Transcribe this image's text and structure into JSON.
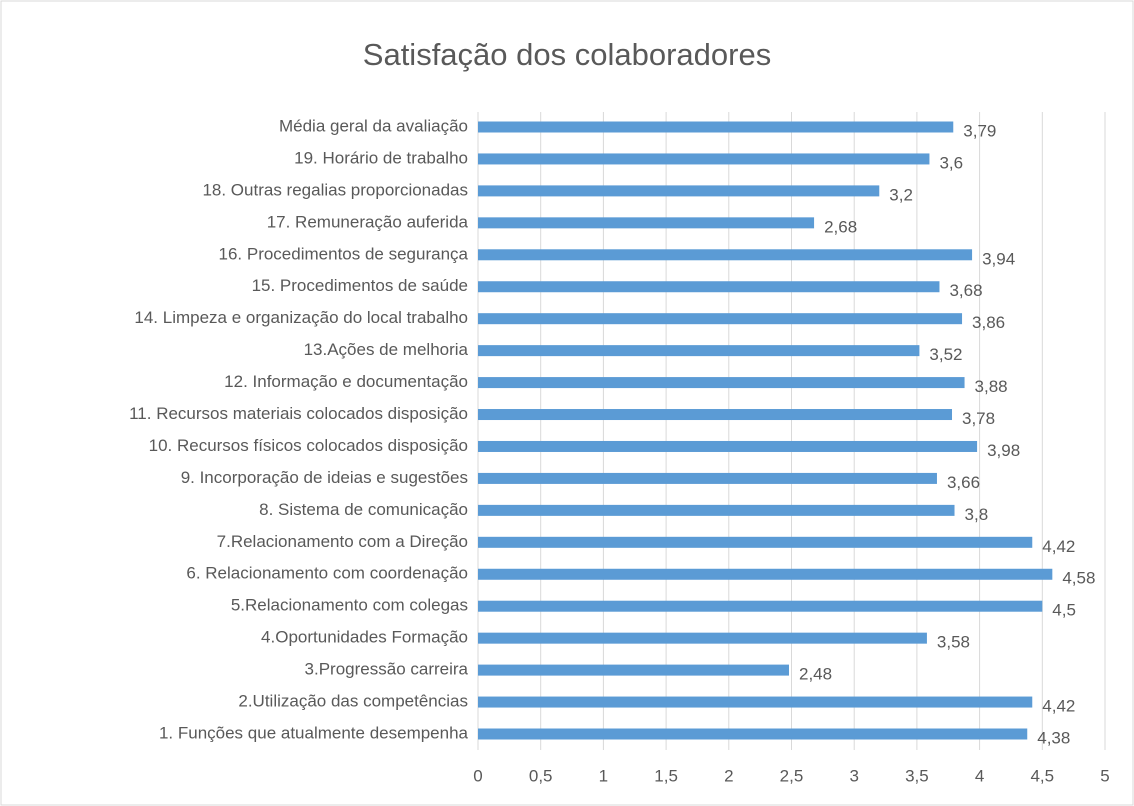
{
  "chart_data": {
    "type": "barh",
    "title": "Satisfação dos colaboradores",
    "categories": [
      "Média geral da avaliação",
      "19. Horário de trabalho",
      "18. Outras regalias proporcionadas",
      "17. Remuneração auferida",
      "16. Procedimentos de segurança",
      "15. Procedimentos de saúde",
      "14. Limpeza e organização do local trabalho",
      "13.Ações de melhoria",
      "12. Informação e documentação",
      "11. Recursos materiais colocados disposição",
      "10. Recursos físicos colocados disposição",
      "9. Incorporação de ideias e sugestões",
      "8. Sistema de comunicação",
      "7.Relacionamento com a Direção",
      "6. Relacionamento com coordenação",
      "5.Relacionamento com colegas",
      "4.Oportunidades Formação",
      "3.Progressão carreira",
      "2.Utilização das competências",
      "1. Funções que atualmente desempenha"
    ],
    "values": [
      3.79,
      3.6,
      3.2,
      2.68,
      3.94,
      3.68,
      3.86,
      3.52,
      3.88,
      3.78,
      3.98,
      3.66,
      3.8,
      4.42,
      4.58,
      4.5,
      3.58,
      2.48,
      4.42,
      4.38
    ],
    "value_labels": [
      "3,79",
      "3,6",
      "3,2",
      "2,68",
      "3,94",
      "3,68",
      "3,86",
      "3,52",
      "3,88",
      "3,78",
      "3,98",
      "3,66",
      "3,8",
      "4,42",
      "4,58",
      "4,5",
      "3,58",
      "2,48",
      "4,42",
      "4,38"
    ],
    "color": "#5b9bd5",
    "xlim": [
      0,
      5
    ],
    "xticks": [
      0,
      {
        "value": 0.5,
        "label": "0,5"
      },
      1,
      {
        "value": 1.5,
        "label": "1,5"
      },
      2,
      {
        "value": 2.5,
        "label": "2,5"
      },
      3,
      {
        "value": 3.5,
        "label": "3,5"
      },
      4,
      {
        "value": 4.5,
        "label": "4,5"
      },
      5
    ],
    "grid": true
  }
}
